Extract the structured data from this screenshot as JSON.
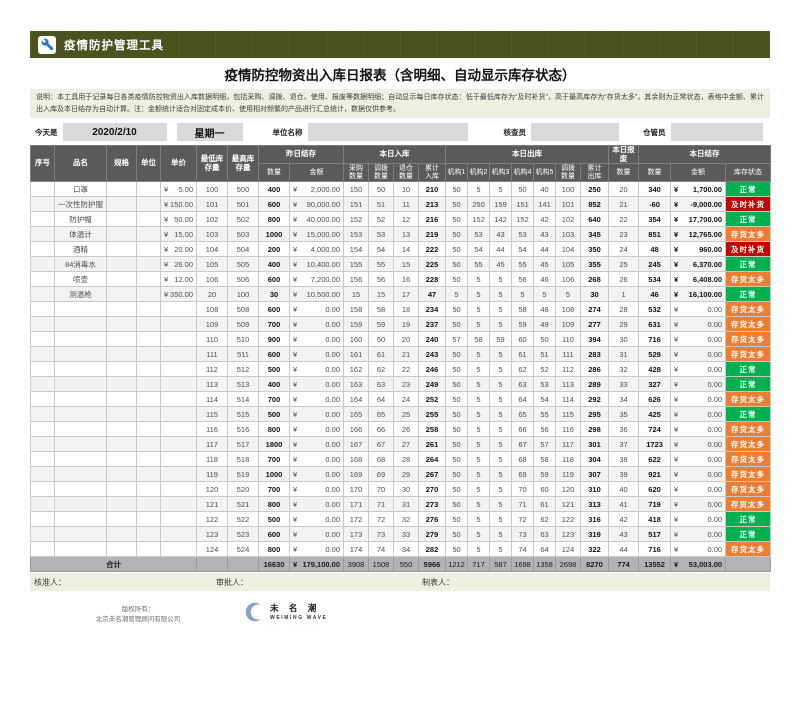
{
  "header": {
    "app_title": "疫情防护管理工具",
    "title": "疫情防控物资出入库日报表（含明细、自动显示库存状态）"
  },
  "note": {
    "text": "说明：本工具用于记录每日各类疫情防控物资出入库数据明细，包括采购、调拨、退仓、使用、报废等数据明细；自动显示每日库存状态：低于最低库存为“及时补货”，高于最高库存为“存货太多”，其余则为正常状态，表格中金额、累计出入库及本日结存为自动计算。注：金额统计适合对固定成本价、使用相对频繁的产品进行汇总统计，数据仅供参考。"
  },
  "info": {
    "today_label": "今天是",
    "date": "2020/2/10",
    "weekday": "星期一",
    "unit_label": "单位名称",
    "unit_value": "",
    "checker_label": "核查员",
    "checker_value": "",
    "keeper_label": "仓管员",
    "keeper_value": ""
  },
  "table": {
    "fixed_columns": [
      "序号",
      "品名",
      "规格",
      "单位",
      "单价",
      "最低库\n存量",
      "最高库\n存量"
    ],
    "groups": [
      {
        "label": "昨日结存",
        "columns": [
          "数量",
          "金额"
        ]
      },
      {
        "label": "本日入库",
        "columns": [
          "采购\n数量",
          "调拨\n数量",
          "退仓\n数量",
          "累计\n入库"
        ]
      },
      {
        "label": "本日出库",
        "columns": [
          "机构1",
          "机构2",
          "机构3",
          "机构4",
          "机构5",
          "调拨\n数量",
          "累计\n出库"
        ]
      },
      {
        "label": "本日报废",
        "columns": [
          "数量"
        ]
      },
      {
        "label": "本日结存",
        "columns": [
          "数量",
          "金额",
          "库存状态"
        ]
      }
    ],
    "row_fields": [
      "name",
      "spec",
      "unit",
      "price",
      "min_stock",
      "max_stock",
      "prev_qty",
      "prev_amount",
      "purchase_qty",
      "transfer_in_qty",
      "return_qty",
      "total_in",
      "org1",
      "org2",
      "org3",
      "org4",
      "org5",
      "transfer_out_qty",
      "total_out",
      "scrap_qty",
      "qty",
      "amount",
      "status"
    ],
    "rows": [
      [
        "口罩",
        "",
        "",
        "¥5.00",
        "100",
        "500",
        "400",
        "¥2,000.00",
        "150",
        "50",
        "10",
        "210",
        "50",
        "5",
        "5",
        "50",
        "40",
        "100",
        "250",
        "20",
        "340",
        "¥1,700.00",
        "正常"
      ],
      [
        "一次性防护服",
        "",
        "",
        "¥150.00",
        "101",
        "501",
        "600",
        "¥90,000.00",
        "151",
        "51",
        "11",
        "213",
        "50",
        "250",
        "159",
        "151",
        "141",
        "101",
        "852",
        "21",
        "-60",
        "¥-9,000.00",
        "及时补货"
      ],
      [
        "防护帽",
        "",
        "",
        "¥50.00",
        "102",
        "502",
        "800",
        "¥40,000.00",
        "152",
        "52",
        "12",
        "216",
        "50",
        "152",
        "142",
        "152",
        "42",
        "102",
        "640",
        "22",
        "354",
        "¥17,700.00",
        "正常"
      ],
      [
        "体温计",
        "",
        "",
        "¥15.00",
        "103",
        "503",
        "1000",
        "¥15,000.00",
        "153",
        "53",
        "13",
        "219",
        "50",
        "53",
        "43",
        "53",
        "43",
        "103",
        "345",
        "23",
        "851",
        "¥12,765.00",
        "存货太多"
      ],
      [
        "酒精",
        "",
        "",
        "¥20.00",
        "104",
        "504",
        "200",
        "¥4,000.00",
        "154",
        "54",
        "14",
        "222",
        "50",
        "54",
        "44",
        "54",
        "44",
        "104",
        "350",
        "24",
        "48",
        "¥960.00",
        "及时补货"
      ],
      [
        "84消毒水",
        "",
        "",
        "¥26.00",
        "105",
        "505",
        "400",
        "¥10,400.00",
        "155",
        "55",
        "15",
        "225",
        "50",
        "55",
        "45",
        "55",
        "45",
        "105",
        "355",
        "25",
        "245",
        "¥6,370.00",
        "正常"
      ],
      [
        "喷壶",
        "",
        "",
        "¥12.00",
        "106",
        "506",
        "600",
        "¥7,200.00",
        "156",
        "56",
        "16",
        "228",
        "50",
        "5",
        "5",
        "56",
        "46",
        "106",
        "268",
        "26",
        "534",
        "¥6,408.00",
        "存货太多"
      ],
      [
        "测温枪",
        "",
        "",
        "¥350.00",
        "20",
        "100",
        "30",
        "¥10,500.00",
        "15",
        "15",
        "17",
        "47",
        "5",
        "5",
        "5",
        "5",
        "5",
        "5",
        "30",
        "1",
        "46",
        "¥16,100.00",
        "正常"
      ],
      [
        "",
        "",
        "",
        "",
        "108",
        "508",
        "600",
        "¥0.00",
        "158",
        "58",
        "18",
        "234",
        "50",
        "5",
        "5",
        "58",
        "48",
        "108",
        "274",
        "28",
        "532",
        "¥0.00",
        "存货太多"
      ],
      [
        "",
        "",
        "",
        "",
        "109",
        "509",
        "700",
        "¥0.00",
        "159",
        "59",
        "19",
        "237",
        "50",
        "5",
        "5",
        "59",
        "49",
        "109",
        "277",
        "29",
        "631",
        "¥0.00",
        "存货太多"
      ],
      [
        "",
        "",
        "",
        "",
        "110",
        "510",
        "900",
        "¥0.00",
        "160",
        "60",
        "20",
        "240",
        "57",
        "58",
        "59",
        "60",
        "50",
        "110",
        "394",
        "30",
        "716",
        "¥0.00",
        "存货太多"
      ],
      [
        "",
        "",
        "",
        "",
        "111",
        "511",
        "600",
        "¥0.00",
        "161",
        "61",
        "21",
        "243",
        "50",
        "5",
        "5",
        "61",
        "51",
        "111",
        "283",
        "31",
        "529",
        "¥0.00",
        "存货太多"
      ],
      [
        "",
        "",
        "",
        "",
        "112",
        "512",
        "500",
        "¥0.00",
        "162",
        "62",
        "22",
        "246",
        "50",
        "5",
        "5",
        "62",
        "52",
        "112",
        "286",
        "32",
        "428",
        "¥0.00",
        "正常"
      ],
      [
        "",
        "",
        "",
        "",
        "113",
        "513",
        "400",
        "¥0.00",
        "163",
        "63",
        "23",
        "249",
        "50",
        "5",
        "5",
        "63",
        "53",
        "113",
        "289",
        "33",
        "327",
        "¥0.00",
        "正常"
      ],
      [
        "",
        "",
        "",
        "",
        "114",
        "514",
        "700",
        "¥0.00",
        "164",
        "64",
        "24",
        "252",
        "50",
        "5",
        "5",
        "64",
        "54",
        "114",
        "292",
        "34",
        "626",
        "¥0.00",
        "存货太多"
      ],
      [
        "",
        "",
        "",
        "",
        "115",
        "515",
        "500",
        "¥0.00",
        "165",
        "65",
        "25",
        "255",
        "50",
        "5",
        "5",
        "65",
        "55",
        "115",
        "295",
        "35",
        "425",
        "¥0.00",
        "正常"
      ],
      [
        "",
        "",
        "",
        "",
        "116",
        "516",
        "800",
        "¥0.00",
        "166",
        "66",
        "26",
        "258",
        "50",
        "5",
        "5",
        "66",
        "56",
        "116",
        "298",
        "36",
        "724",
        "¥0.00",
        "存货太多"
      ],
      [
        "",
        "",
        "",
        "",
        "117",
        "517",
        "1800",
        "¥0.00",
        "167",
        "67",
        "27",
        "261",
        "50",
        "5",
        "5",
        "67",
        "57",
        "117",
        "301",
        "37",
        "1723",
        "¥0.00",
        "存货太多"
      ],
      [
        "",
        "",
        "",
        "",
        "118",
        "518",
        "700",
        "¥0.00",
        "168",
        "68",
        "28",
        "264",
        "50",
        "5",
        "5",
        "68",
        "58",
        "118",
        "304",
        "38",
        "622",
        "¥0.00",
        "存货太多"
      ],
      [
        "",
        "",
        "",
        "",
        "119",
        "519",
        "1000",
        "¥0.00",
        "169",
        "69",
        "29",
        "267",
        "50",
        "5",
        "5",
        "69",
        "59",
        "119",
        "307",
        "39",
        "921",
        "¥0.00",
        "存货太多"
      ],
      [
        "",
        "",
        "",
        "",
        "120",
        "520",
        "700",
        "¥0.00",
        "170",
        "70",
        "30",
        "270",
        "50",
        "5",
        "5",
        "70",
        "60",
        "120",
        "310",
        "40",
        "620",
        "¥0.00",
        "存货太多"
      ],
      [
        "",
        "",
        "",
        "",
        "121",
        "521",
        "800",
        "¥0.00",
        "171",
        "71",
        "31",
        "273",
        "50",
        "5",
        "5",
        "71",
        "61",
        "121",
        "313",
        "41",
        "719",
        "¥0.00",
        "存货太多"
      ],
      [
        "",
        "",
        "",
        "",
        "122",
        "522",
        "500",
        "¥0.00",
        "172",
        "72",
        "32",
        "276",
        "50",
        "5",
        "5",
        "72",
        "62",
        "122",
        "316",
        "42",
        "418",
        "¥0.00",
        "正常"
      ],
      [
        "",
        "",
        "",
        "",
        "123",
        "523",
        "600",
        "¥0.00",
        "173",
        "73",
        "33",
        "279",
        "50",
        "5",
        "5",
        "73",
        "63",
        "123",
        "319",
        "43",
        "517",
        "¥0.00",
        "正常"
      ],
      [
        "",
        "",
        "",
        "",
        "124",
        "524",
        "800",
        "¥0.00",
        "174",
        "74",
        "34",
        "282",
        "50",
        "5",
        "5",
        "74",
        "64",
        "124",
        "322",
        "44",
        "716",
        "¥0.00",
        "存货太多"
      ]
    ],
    "totals": {
      "label": "合计",
      "values": [
        "16630",
        "¥179,100.00",
        "3908",
        "1508",
        "550",
        "5966",
        "1212",
        "717",
        "587",
        "1698",
        "1358",
        "2698",
        "8270",
        "774",
        "13552",
        "¥53,003.00"
      ]
    },
    "status_colors": {
      "正常": "#00b050",
      "及时补货": "#c00000",
      "存货太多": "#ed7d31"
    }
  },
  "signatures": {
    "approver": "核准人：",
    "reviewer": "审批人：",
    "preparer": "制表人："
  },
  "footer": {
    "copyright_label": "版权所有：",
    "company": "北京未名潮管理顾问有限公司",
    "logo_cn": "未 名 潮",
    "logo_en": "WEIMING WAVE",
    "logo_dots": "· · · · · ·"
  }
}
